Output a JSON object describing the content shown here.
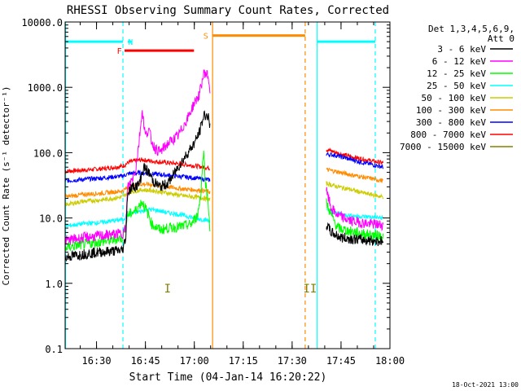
{
  "chart_data": {
    "type": "line",
    "title": "RHESSI Observing Summary Count Rates, Corrected",
    "xlabel": "Start Time (04-Jan-14 16:20:22)",
    "ylabel": "Corrected Count Rate (s⁻¹ detector⁻¹)",
    "y_scale": "log",
    "ylim": [
      0.1,
      10000
    ],
    "xlim_minutes": [
      20.37,
      120.0
    ],
    "x_ticks": [
      {
        "t": 30,
        "label": "16:30"
      },
      {
        "t": 45,
        "label": "16:45"
      },
      {
        "t": 60,
        "label": "17:00"
      },
      {
        "t": 75,
        "label": "17:15"
      },
      {
        "t": 90,
        "label": "17:30"
      },
      {
        "t": 105,
        "label": "17:45"
      },
      {
        "t": 120,
        "label": "18:00"
      }
    ],
    "y_ticks": [
      {
        "v": 0.1,
        "label": "0.1"
      },
      {
        "v": 1,
        "label": "1.0"
      },
      {
        "v": 10,
        "label": "10.0"
      },
      {
        "v": 100,
        "label": "100.0"
      },
      {
        "v": 1000,
        "label": "1000.0"
      },
      {
        "v": 10000,
        "label": "10000.0"
      }
    ],
    "legend": {
      "header": [
        "Det 1,3,4,5,6,9,",
        "Att 0"
      ],
      "placement": "right"
    },
    "series": [
      {
        "name": "3 - 6 keV",
        "color": "#000000",
        "seg1": [
          [
            20.4,
            2.5
          ],
          [
            26,
            2.8
          ],
          [
            31,
            3.0
          ],
          [
            38,
            3.2
          ],
          [
            39,
            5.2
          ],
          [
            39.5,
            24
          ],
          [
            41,
            30
          ],
          [
            43,
            32
          ],
          [
            44.5,
            60
          ],
          [
            46,
            50
          ],
          [
            47.5,
            36
          ],
          [
            49.5,
            30
          ],
          [
            52,
            34
          ],
          [
            55,
            60
          ],
          [
            58,
            100
          ],
          [
            60,
            140
          ],
          [
            61.5,
            200
          ],
          [
            63,
            380
          ],
          [
            64.2,
            360
          ],
          [
            64.6,
            280
          ],
          [
            64.8,
            240
          ]
        ],
        "seg2": [
          [
            100.5,
            8
          ],
          [
            102,
            6
          ],
          [
            105,
            5.0
          ],
          [
            110,
            4.7
          ],
          [
            115,
            4.5
          ],
          [
            118,
            4.4
          ]
        ]
      },
      {
        "name": "6 - 12 keV",
        "color": "#ff00ff",
        "seg1": [
          [
            20.4,
            4.5
          ],
          [
            26,
            5.0
          ],
          [
            31,
            5.3
          ],
          [
            38,
            5.8
          ],
          [
            39,
            7
          ],
          [
            39.5,
            29
          ],
          [
            41,
            40
          ],
          [
            42,
            55
          ],
          [
            43,
            140
          ],
          [
            44,
            450
          ],
          [
            45,
            180
          ],
          [
            46,
            230
          ],
          [
            47,
            145
          ],
          [
            48,
            115
          ],
          [
            49.5,
            102
          ],
          [
            52,
            140
          ],
          [
            55,
            180
          ],
          [
            58,
            340
          ],
          [
            60,
            580
          ],
          [
            61.5,
            760
          ],
          [
            63,
            1700
          ],
          [
            64.2,
            1520
          ],
          [
            64.8,
            900
          ]
        ],
        "seg2": [
          [
            100.5,
            26
          ],
          [
            102,
            14
          ],
          [
            104,
            11.0
          ],
          [
            108,
            9.0
          ],
          [
            113,
            8.2
          ],
          [
            118,
            7.8
          ]
        ]
      },
      {
        "name": "12 - 25 keV",
        "color": "#00ff00",
        "seg1": [
          [
            20.4,
            3.5
          ],
          [
            24,
            3.8
          ],
          [
            30,
            4.2
          ],
          [
            35,
            4.6
          ],
          [
            38,
            5.0
          ],
          [
            39.5,
            11
          ],
          [
            42,
            13
          ],
          [
            44,
            18
          ],
          [
            46,
            11
          ],
          [
            47,
            8
          ],
          [
            49.5,
            6.6
          ],
          [
            52,
            7.0
          ],
          [
            56,
            7.4
          ],
          [
            59,
            8.0
          ],
          [
            61,
            11
          ],
          [
            62,
            24
          ],
          [
            62.8,
            110
          ],
          [
            63.5,
            33
          ],
          [
            64.3,
            17
          ],
          [
            64.8,
            6
          ]
        ],
        "seg2": [
          [
            100.5,
            17
          ],
          [
            102,
            11
          ],
          [
            104,
            7.0
          ],
          [
            108,
            6.2
          ],
          [
            113,
            5.6
          ],
          [
            118,
            5.3
          ]
        ]
      },
      {
        "name": "25 - 50 keV",
        "color": "#00ffff",
        "seg1": [
          [
            20.4,
            7.5
          ],
          [
            26,
            8.2
          ],
          [
            32,
            8.6
          ],
          [
            38,
            9.5
          ],
          [
            40,
            11.5
          ],
          [
            43,
            12.5
          ],
          [
            46,
            13.5
          ],
          [
            49,
            13
          ],
          [
            52,
            12
          ],
          [
            56,
            11.2
          ],
          [
            60,
            10
          ],
          [
            63,
            9.4
          ],
          [
            64.8,
            9.0
          ]
        ],
        "seg2": [
          [
            100.5,
            13
          ],
          [
            103,
            12
          ],
          [
            107,
            11
          ],
          [
            112,
            10.5
          ],
          [
            118,
            10.0
          ]
        ]
      },
      {
        "name": "50 - 100 keV",
        "color": "#cccc00",
        "seg1": [
          [
            20.4,
            16
          ],
          [
            26,
            18
          ],
          [
            32,
            19
          ],
          [
            38,
            21
          ],
          [
            40,
            25
          ],
          [
            44,
            27
          ],
          [
            48,
            26
          ],
          [
            52,
            24
          ],
          [
            56,
            22
          ],
          [
            60,
            21
          ],
          [
            63,
            20
          ],
          [
            64.8,
            19
          ]
        ],
        "seg2": [
          [
            100.5,
            34
          ],
          [
            103,
            31
          ],
          [
            107,
            28
          ],
          [
            112,
            24
          ],
          [
            118,
            21
          ]
        ]
      },
      {
        "name": "100 - 300 keV",
        "color": "#ff8c00",
        "seg1": [
          [
            20.4,
            21
          ],
          [
            26,
            23
          ],
          [
            32,
            24
          ],
          [
            38,
            26
          ],
          [
            40,
            30
          ],
          [
            44,
            33
          ],
          [
            48,
            32
          ],
          [
            52,
            30
          ],
          [
            56,
            28
          ],
          [
            60,
            27
          ],
          [
            63,
            26
          ],
          [
            64.8,
            25
          ]
        ],
        "seg2": [
          [
            100.5,
            55
          ],
          [
            103,
            52
          ],
          [
            107,
            47
          ],
          [
            112,
            42
          ],
          [
            118,
            37
          ]
        ]
      },
      {
        "name": "300 - 800 keV",
        "color": "#0000ff",
        "seg1": [
          [
            20.4,
            37
          ],
          [
            26,
            39
          ],
          [
            32,
            41
          ],
          [
            38,
            44
          ],
          [
            40,
            48
          ],
          [
            44,
            49
          ],
          [
            48,
            47
          ],
          [
            52,
            45
          ],
          [
            56,
            43
          ],
          [
            60,
            41
          ],
          [
            63,
            39
          ],
          [
            64.8,
            38
          ]
        ],
        "seg2": [
          [
            100.5,
            95
          ],
          [
            103,
            92
          ],
          [
            107,
            81
          ],
          [
            112,
            70
          ],
          [
            118,
            60
          ]
        ]
      },
      {
        "name": "800 - 7000 keV",
        "color": "#ff0000",
        "seg1": [
          [
            20.4,
            52
          ],
          [
            26,
            54
          ],
          [
            32,
            57
          ],
          [
            38,
            62
          ],
          [
            40,
            72
          ],
          [
            44,
            78
          ],
          [
            48,
            73
          ],
          [
            52,
            70
          ],
          [
            56,
            67
          ],
          [
            60,
            63
          ],
          [
            63,
            60
          ],
          [
            64.8,
            58
          ]
        ],
        "seg2": [
          [
            100.5,
            112
          ],
          [
            103,
            102
          ],
          [
            107,
            89
          ],
          [
            112,
            79
          ],
          [
            118,
            69
          ]
        ]
      },
      {
        "name": "7000 - 15000 keV",
        "color": "#808000",
        "seg1": [],
        "seg2": []
      }
    ],
    "annotations": {
      "vlines": [
        {
          "t": 20.5,
          "color": "#00ffff",
          "style": "solid"
        },
        {
          "t": 38.1,
          "color": "#00ffff",
          "style": "dashed"
        },
        {
          "t": 65.6,
          "color": "#ff8c00",
          "style": "solid"
        },
        {
          "t": 94.0,
          "color": "#ff8c00",
          "style": "dashed"
        },
        {
          "t": 97.7,
          "color": "#00ffff",
          "style": "solid"
        },
        {
          "t": 115.5,
          "color": "#00ffff",
          "style": "dashed"
        }
      ],
      "bars": [
        {
          "t0": 20.5,
          "t1": 38.1,
          "y": 5000,
          "color": "#00ffff",
          "label": "",
          "label_t": 0
        },
        {
          "t0": 39.6,
          "t1": 40.8,
          "y": 5000,
          "color": "#00ffff",
          "label": "N",
          "label_t": 40.4
        },
        {
          "t0": 97.7,
          "t1": 115.5,
          "y": 5000,
          "color": "#00ffff",
          "label": "",
          "label_t": 0
        },
        {
          "t0": 38.6,
          "t1": 59.9,
          "y": 3650,
          "color": "#ff0000",
          "label": "F",
          "label_t": 37.0
        },
        {
          "t0": 65.6,
          "t1": 94.0,
          "y": 6200,
          "color": "#ff8c00",
          "label": "S",
          "label_t": 63.5
        }
      ],
      "region_labels": [
        {
          "t": 51.8,
          "y": 0.73,
          "text": "I",
          "color": "#808000"
        },
        {
          "t": 95.5,
          "y": 0.73,
          "text": "II",
          "color": "#808000"
        }
      ]
    }
  },
  "footer": {
    "timestamp": "18-Oct-2021 13:00"
  }
}
